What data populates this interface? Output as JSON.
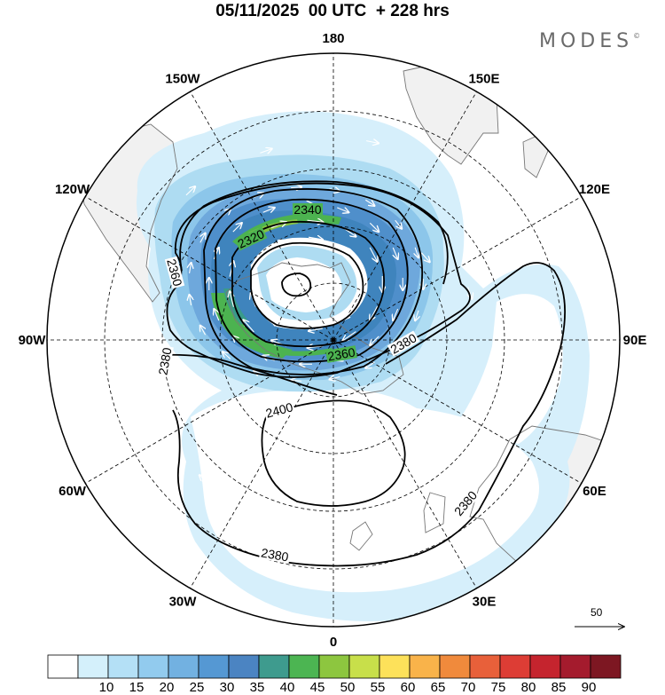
{
  "header": {
    "title": "05/11/2025  00 UTC  + 228 hrs",
    "brand": "MODES",
    "brand_mark": "©"
  },
  "map": {
    "projection": "south-polar-stereographic",
    "longitude_labels": [
      {
        "id": "0",
        "text": "0",
        "deg": 0
      },
      {
        "id": "30e",
        "text": "30E",
        "deg": 30
      },
      {
        "id": "60e",
        "text": "60E",
        "deg": 60
      },
      {
        "id": "90e",
        "text": "90E",
        "deg": 90
      },
      {
        "id": "120e",
        "text": "120E",
        "deg": 120
      },
      {
        "id": "150e",
        "text": "150E",
        "deg": 150
      },
      {
        "id": "180",
        "text": "180",
        "deg": 180
      },
      {
        "id": "150w",
        "text": "150W",
        "deg": -150
      },
      {
        "id": "120w",
        "text": "120W",
        "deg": -120
      },
      {
        "id": "90w",
        "text": "90W",
        "deg": -90
      },
      {
        "id": "60w",
        "text": "60W",
        "deg": -60
      },
      {
        "id": "30w",
        "text": "30W",
        "deg": -30
      }
    ],
    "contour_labels": [
      "2320",
      "2340",
      "2360",
      "2360",
      "2380",
      "2380",
      "2380",
      "2380",
      "2400"
    ],
    "fill_colors": {
      "c10": "#d6effb",
      "c15": "#aedcf2",
      "c20": "#8cc6ea",
      "c25": "#6ea8dc",
      "c30": "#4f8fcb",
      "c35": "#3f84bd",
      "c40": "#3a9b8a",
      "c45": "#4cb350",
      "c50": "#86c342",
      "c55": "#c9dd48"
    },
    "land_color": "#f1f1f1",
    "coast_color": "#777777"
  },
  "colorbar": {
    "labels": [
      "10",
      "15",
      "20",
      "25",
      "30",
      "35",
      "40",
      "45",
      "50",
      "55",
      "60",
      "65",
      "70",
      "75",
      "80",
      "85",
      "90"
    ],
    "colors": [
      "#ffffff",
      "#d4f0fb",
      "#b4e0f6",
      "#92cbee",
      "#72b1e1",
      "#5598d3",
      "#4b84c2",
      "#3e9b8e",
      "#4cb552",
      "#8dc63f",
      "#c8df4a",
      "#fde15a",
      "#f9b34a",
      "#f08a3c",
      "#e8603a",
      "#dd3d35",
      "#c5242e",
      "#a41b2d",
      "#7d1722"
    ]
  },
  "reference_vector": {
    "label": "50"
  }
}
